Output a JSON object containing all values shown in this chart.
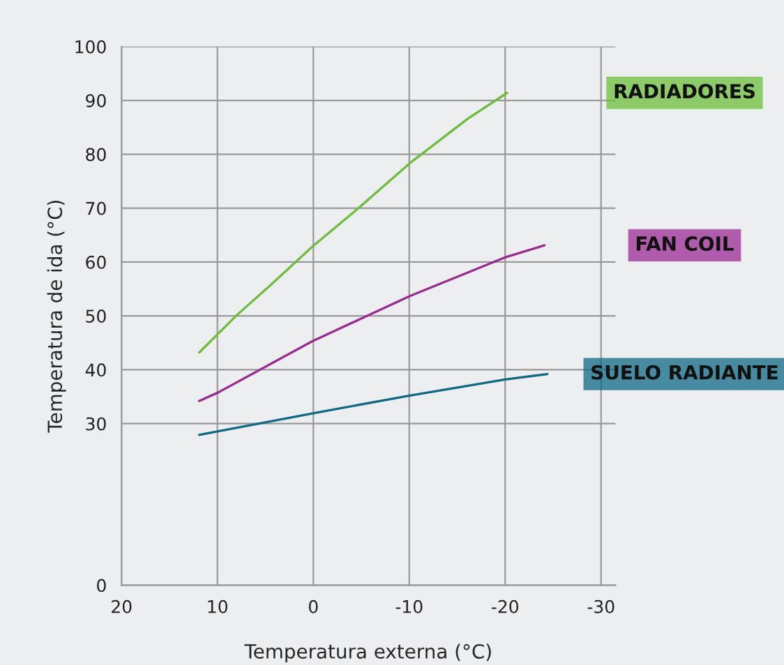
{
  "chart_data": {
    "type": "line",
    "xlabel": "Temperatura externa (°C)",
    "ylabel": "Temperatura de ida (°C)",
    "xlim": [
      20,
      -31.5
    ],
    "xticks": [
      20,
      10,
      0,
      -10,
      -20,
      -30
    ],
    "ylim": [
      0,
      100
    ],
    "yticks": [
      0,
      30,
      40,
      50,
      60,
      70,
      80,
      90,
      100
    ],
    "grid": true,
    "legend": false,
    "marker": "none",
    "line_style": "solid",
    "series": [
      {
        "name": "RADIADORES",
        "color": "#6cbf3c",
        "x": [
          11.9,
          8.0,
          4.4,
          0.2,
          -4.7,
          -10.1,
          -16.1,
          -20.2
        ],
        "values": [
          43.2,
          50.1,
          55.8,
          62.7,
          70.0,
          78.4,
          86.6,
          91.4
        ]
      },
      {
        "name": "FAN COIL",
        "color": "#9b2a94",
        "x": [
          11.9,
          9.9,
          0.1,
          -5.0,
          -10.1,
          -19.9,
          -24.1
        ],
        "values": [
          34.2,
          35.8,
          45.3,
          49.5,
          53.7,
          60.8,
          63.1
        ]
      },
      {
        "name": "SUELO RADIANTE",
        "color": "#0f6a85",
        "x": [
          11.9,
          0.1,
          -10.0,
          -20.0,
          -24.4
        ],
        "values": [
          27.9,
          31.9,
          35.2,
          38.2,
          39.2
        ]
      }
    ]
  }
}
